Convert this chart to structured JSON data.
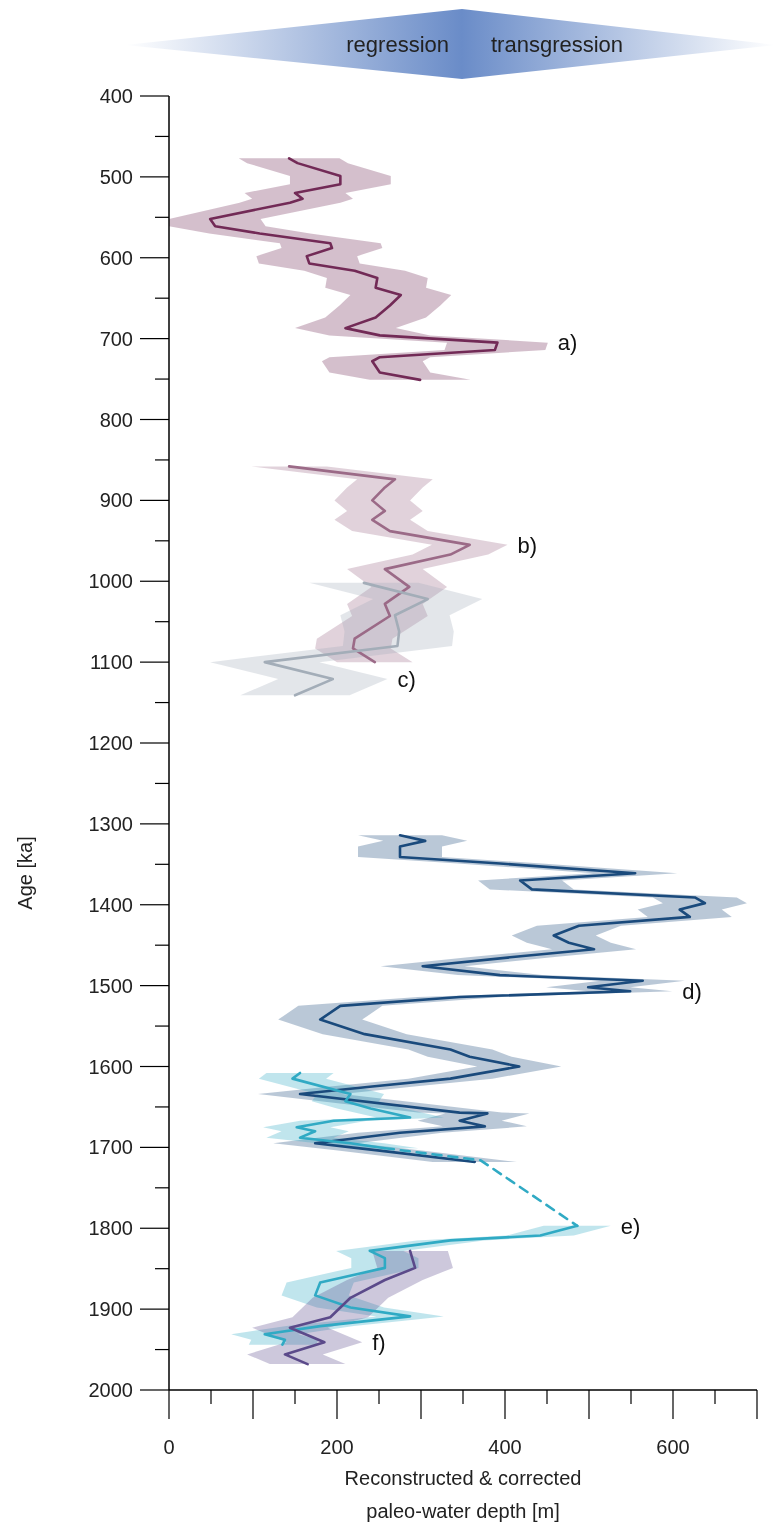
{
  "chart_data": {
    "type": "line",
    "orientation": "horizontal",
    "xlabel": "Reconstructed & corrected\npaleo-water depth [m]",
    "ylabel": "Age [ka]",
    "xlim": [
      0,
      700
    ],
    "ylim": [
      2000,
      400
    ],
    "xticks": [
      0,
      {
        "value": 50,
        "label": null
      },
      {
        "value": 100,
        "label": null
      },
      {
        "value": 150,
        "label": null
      },
      200,
      {
        "value": 250,
        "label": null
      },
      {
        "value": 300,
        "label": null
      },
      {
        "value": 350,
        "label": null
      },
      400,
      {
        "value": 450,
        "label": null
      },
      {
        "value": 500,
        "label": null
      },
      {
        "value": 550,
        "label": null
      },
      600,
      {
        "value": 650,
        "label": null
      },
      {
        "value": 700,
        "label": null
      }
    ],
    "yticks": [
      400,
      {
        "value": 450,
        "label": null
      },
      500,
      {
        "value": 550,
        "label": null
      },
      600,
      {
        "value": 650,
        "label": null
      },
      700,
      {
        "value": 750,
        "label": null
      },
      800,
      {
        "value": 850,
        "label": null
      },
      900,
      {
        "value": 950,
        "label": null
      },
      1000,
      {
        "value": 1050,
        "label": null
      },
      1100,
      {
        "value": 1150,
        "label": null
      },
      1200,
      {
        "value": 1250,
        "label": null
      },
      1300,
      {
        "value": 1350,
        "label": null
      },
      1400,
      {
        "value": 1450,
        "label": null
      },
      1500,
      {
        "value": 1550,
        "label": null
      },
      1600,
      {
        "value": 1650,
        "label": null
      },
      1700,
      {
        "value": 1750,
        "label": null
      },
      1800,
      {
        "value": 1850,
        "label": null
      },
      1900,
      {
        "value": 1950,
        "label": null
      },
      2000
    ],
    "annotations": [
      "regression",
      "transgression",
      {
        "text": "a)",
        "x": 451,
        "y": 705
      },
      {
        "text": "b)",
        "x": 403,
        "y": 955
      },
      {
        "text": "c)",
        "x": 260,
        "y": 1121
      },
      {
        "text": "d)",
        "x": 599,
        "y": 1507
      },
      {
        "text": "e)",
        "x": 526,
        "y": 1797
      },
      {
        "text": "f)",
        "x": 230,
        "y": 1941
      }
    ],
    "series": [
      {
        "color": "#722a56",
        "x": [
          477,
          483,
          499,
          509,
          520,
          527,
          532,
          552,
          561,
          570,
          582,
          588,
          598,
          607,
          616,
          625,
          637,
          646,
          659,
          674,
          687,
          696,
          705,
          714,
          723,
          728,
          742,
          751
        ],
        "values": [
          143,
          153,
          204,
          204,
          150,
          159,
          144,
          49,
          55,
          108,
          192,
          194,
          164,
          167,
          221,
          248,
          246,
          276,
          263,
          246,
          210,
          251,
          391,
          388,
          251,
          242,
          251,
          299
        ],
        "lower": [
          83,
          93,
          144,
          144,
          90,
          99,
          84,
          0,
          0,
          48,
          132,
          134,
          104,
          107,
          161,
          188,
          186,
          216,
          203,
          186,
          150,
          191,
          331,
          328,
          191,
          182,
          191,
          239
        ],
        "upper": [
          203,
          213,
          264,
          264,
          210,
          219,
          204,
          109,
          115,
          168,
          252,
          254,
          224,
          227,
          281,
          308,
          306,
          336,
          323,
          306,
          270,
          311,
          451,
          448,
          311,
          302,
          311,
          359
        ]
      },
      {
        "color": "#9b6a87",
        "x": [
          858,
          874,
          884,
          900,
          913,
          924,
          938,
          955,
          967,
          985,
          1007,
          1028,
          1043,
          1071,
          1083,
          1100
        ],
        "values": [
          143,
          269,
          257,
          242,
          257,
          242,
          263,
          358,
          335,
          257,
          286,
          257,
          263,
          221,
          219,
          245
        ],
        "lower": [
          98,
          224,
          212,
          197,
          212,
          197,
          218,
          313,
          290,
          212,
          241,
          212,
          218,
          176,
          174,
          200
        ],
        "upper": [
          188,
          314,
          302,
          287,
          302,
          287,
          308,
          403,
          380,
          302,
          331,
          302,
          308,
          266,
          264,
          290
        ]
      },
      {
        "color": "#a3adb8",
        "x": [
          1002,
          1022,
          1042,
          1062,
          1080,
          1100,
          1121,
          1141
        ],
        "values": [
          232,
          308,
          269,
          274,
          272,
          114,
          195,
          150
        ],
        "lower": [
          167,
          243,
          204,
          209,
          207,
          49,
          130,
          85
        ],
        "upper": [
          297,
          373,
          334,
          339,
          337,
          179,
          260,
          215
        ]
      },
      {
        "color": "#1a4a7c",
        "x": [
          1314,
          1321,
          1328,
          1341,
          1349,
          1361,
          1370,
          1381,
          1391,
          1398,
          1406,
          1415,
          1426,
          1438,
          1447,
          1455,
          1465,
          1476,
          1487,
          1494,
          1502,
          1507,
          1514,
          1525,
          1542,
          1560,
          1579,
          1588,
          1600,
          1615,
          1625,
          1634,
          1657,
          1658,
          1667,
          1674,
          1682,
          1695,
          1704,
          1718
        ],
        "values": [
          275,
          305,
          275,
          275,
          394,
          555,
          418,
          432,
          626,
          638,
          608,
          620,
          488,
          458,
          476,
          506,
          406,
          302,
          394,
          564,
          499,
          549,
          346,
          204,
          180,
          233,
          335,
          358,
          417,
          335,
          239,
          156,
          346,
          379,
          346,
          376,
          275,
          174,
          251,
          364
        ],
        "lower": [
          225,
          255,
          225,
          225,
          344,
          505,
          368,
          382,
          576,
          588,
          558,
          570,
          438,
          408,
          426,
          456,
          356,
          252,
          344,
          514,
          449,
          499,
          296,
          154,
          130,
          183,
          285,
          308,
          367,
          285,
          189,
          106,
          296,
          329,
          296,
          326,
          225,
          124,
          201,
          314
        ],
        "upper": [
          325,
          355,
          325,
          325,
          444,
          605,
          468,
          482,
          676,
          688,
          658,
          670,
          538,
          508,
          526,
          556,
          456,
          352,
          444,
          614,
          549,
          599,
          396,
          254,
          230,
          283,
          385,
          408,
          467,
          385,
          289,
          206,
          396,
          429,
          396,
          426,
          325,
          224,
          301,
          414
        ]
      },
      {
        "color": "#30aac4",
        "x": [
          1608,
          1615,
          1634,
          1643,
          1652,
          1663,
          1667,
          1675,
          1680,
          1688,
          1695,
          1701
        ],
        "values": [
          156,
          147,
          216,
          210,
          240,
          287,
          196,
          152,
          174,
          156,
          216,
          257
        ],
        "lower": [
          116,
          107,
          176,
          170,
          200,
          247,
          156,
          112,
          134,
          116,
          176,
          217
        ],
        "upper": [
          196,
          187,
          256,
          250,
          280,
          327,
          236,
          192,
          214,
          196,
          256,
          297
        ]
      },
      {
        "color": "#30aac4",
        "line_style": "dashed",
        "x": [
          1701,
          1716,
          1797
        ],
        "values": [
          257,
          371,
          486
        ]
      },
      {
        "color": "#30aac4",
        "x": [
          1797,
          1809,
          1815,
          1828,
          1837,
          1849,
          1867,
          1883,
          1898,
          1909,
          1913,
          1921,
          1931,
          1938,
          1944
        ],
        "values": [
          486,
          442,
          335,
          239,
          257,
          257,
          180,
          174,
          216,
          287,
          251,
          180,
          114,
          138,
          135
        ],
        "lower": [
          446,
          402,
          295,
          199,
          217,
          217,
          140,
          134,
          176,
          247,
          211,
          140,
          74,
          98,
          95
        ],
        "upper": [
          526,
          482,
          375,
          279,
          297,
          297,
          220,
          214,
          256,
          327,
          291,
          220,
          154,
          178,
          175
        ]
      },
      {
        "color": "#5b4a8a",
        "x": [
          1828,
          1849,
          1864,
          1886,
          1898,
          1910,
          1923,
          1941,
          1956,
          1968
        ],
        "values": [
          287,
          293,
          257,
          216,
          204,
          192,
          144,
          185,
          138,
          165
        ],
        "lower": [
          242,
          248,
          212,
          171,
          159,
          147,
          99,
          140,
          93,
          120
        ],
        "upper": [
          332,
          338,
          302,
          261,
          249,
          237,
          189,
          230,
          183,
          210
        ]
      }
    ]
  }
}
